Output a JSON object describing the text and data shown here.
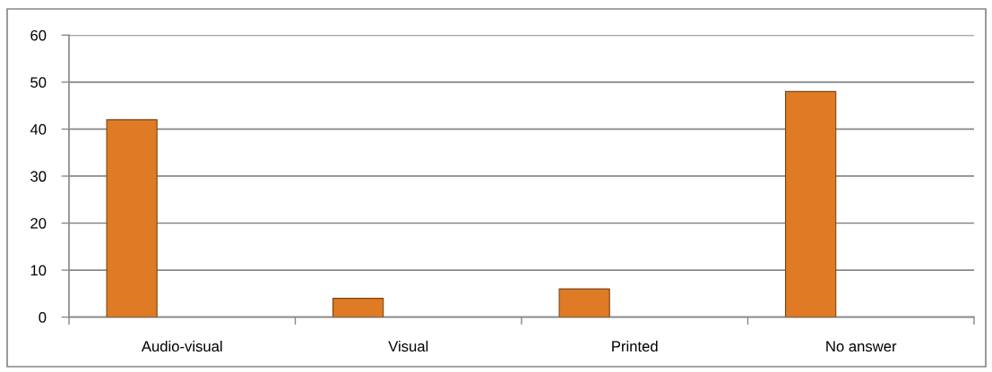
{
  "chart_data": {
    "type": "bar",
    "categories": [
      "Audio-visual",
      "Visual",
      "Printed",
      "No answer"
    ],
    "values": [
      42,
      4,
      6,
      48
    ],
    "color": "#df7b25",
    "ylim": [
      0,
      60
    ],
    "yticks": [
      0,
      10,
      20,
      30,
      40,
      50,
      60
    ],
    "grid": "y"
  }
}
